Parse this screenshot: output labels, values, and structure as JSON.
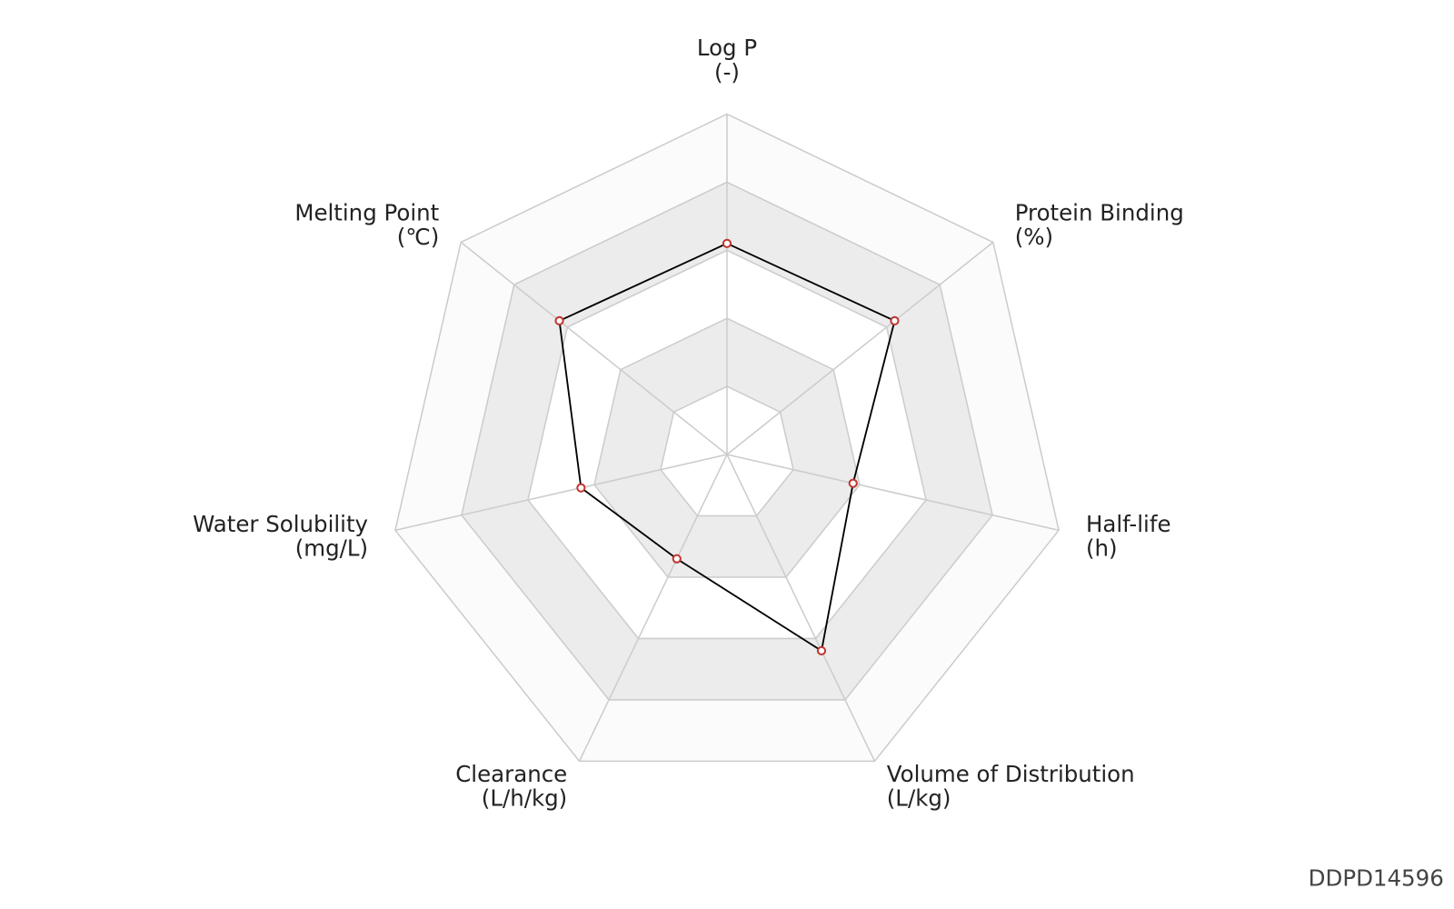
{
  "chart_data": {
    "type": "radar",
    "indicators": [
      {
        "name": "Log P",
        "unit": "(-)"
      },
      {
        "name": "Protein Binding",
        "unit": "(%)"
      },
      {
        "name": "Half-life",
        "unit": "(h)"
      },
      {
        "name": "Volume of Distribution",
        "unit": "(L/kg)"
      },
      {
        "name": "Clearance",
        "unit": "(L/h/kg)"
      },
      {
        "name": "Water Solubility",
        "unit": "(mg/L)"
      },
      {
        "name": "Melting Point",
        "unit": "(℃)"
      }
    ],
    "values": [
      62,
      63,
      38,
      64,
      34,
      44,
      63
    ],
    "rlim": [
      0,
      100
    ],
    "rticks": [
      20,
      40,
      60,
      80,
      100
    ],
    "line_color": "#000000",
    "point_color": "#c23531",
    "watermark": "DDPD14596"
  }
}
